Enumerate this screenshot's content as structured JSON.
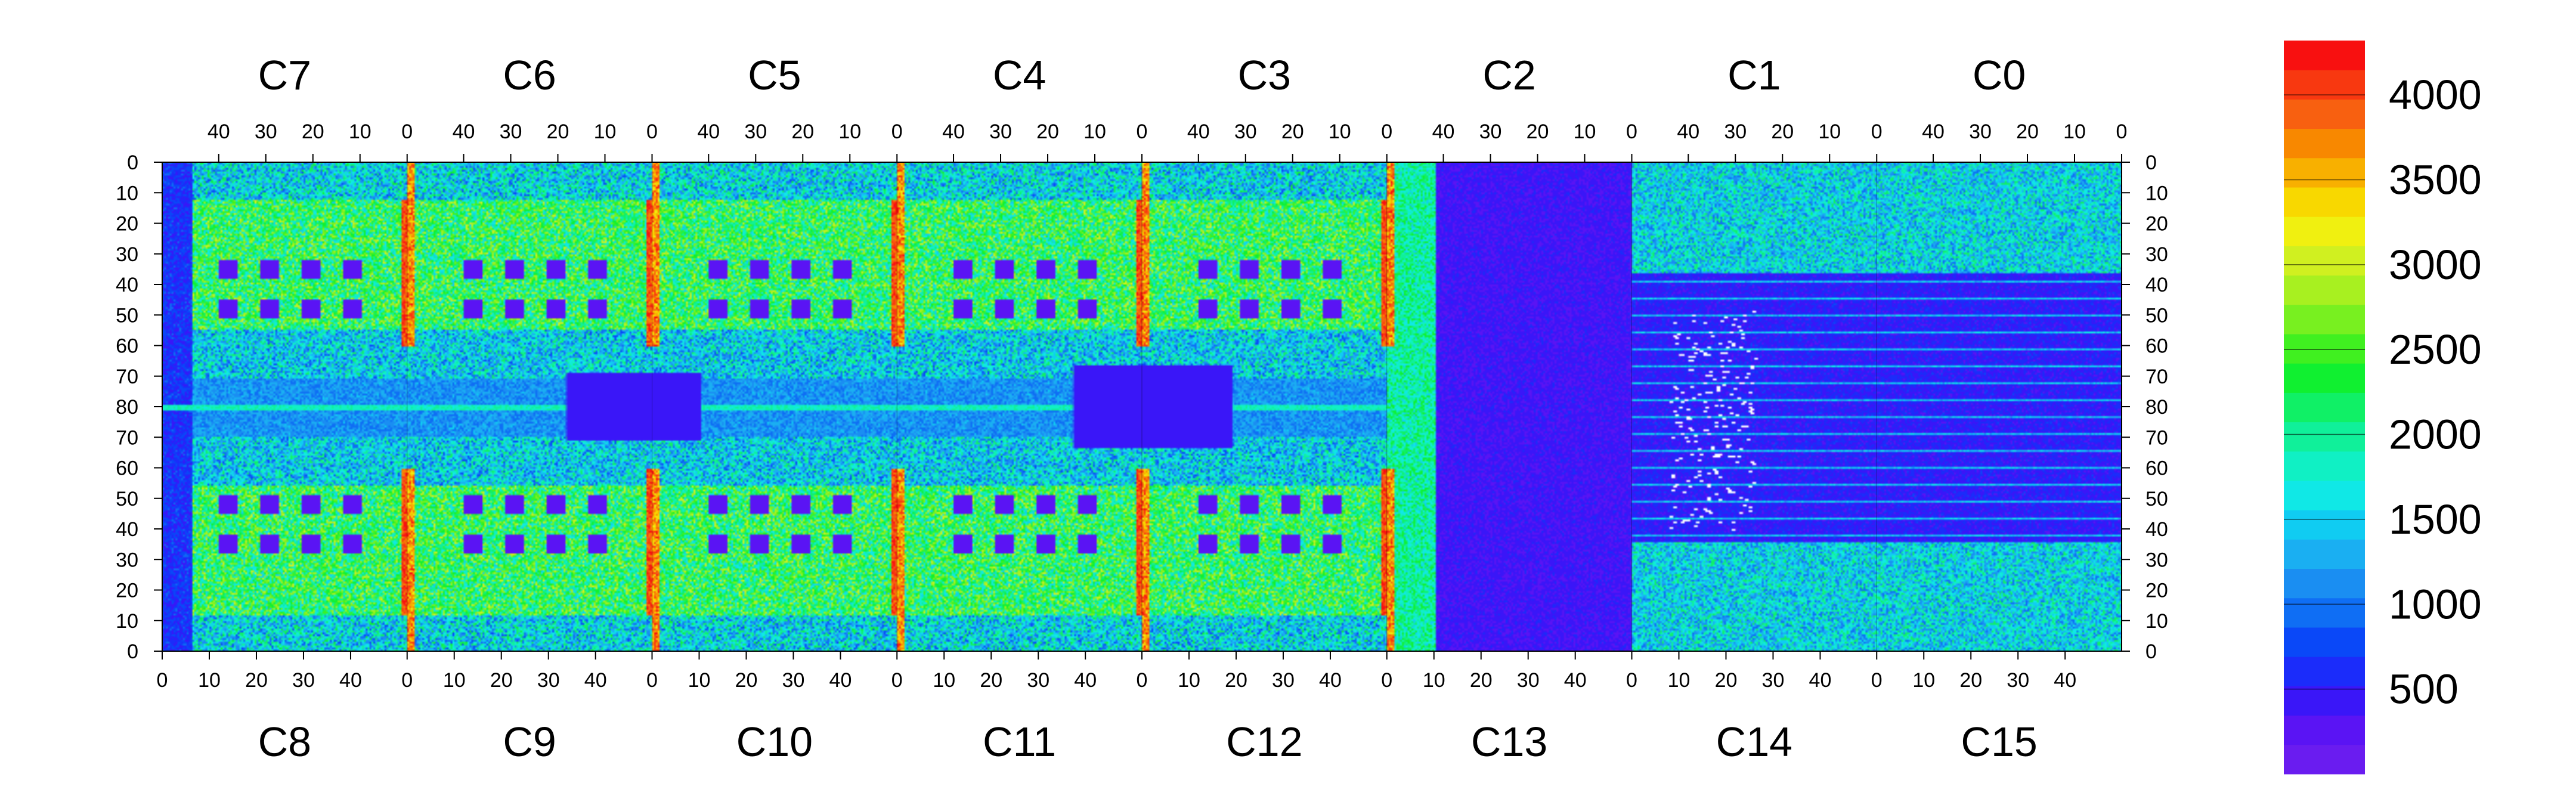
{
  "chart_data": {
    "type": "heatmap",
    "title": "",
    "xlabel": "",
    "ylabel": "",
    "top_chips": [
      "C7",
      "C6",
      "C5",
      "C4",
      "C3",
      "C2",
      "C1",
      "C0"
    ],
    "bottom_chips": [
      "C8",
      "C9",
      "C10",
      "C11",
      "C12",
      "C13",
      "C14",
      "C15"
    ],
    "top_x_ticks": [
      "40",
      "30",
      "20",
      "10",
      "0"
    ],
    "bottom_x_ticks": [
      "0",
      "10",
      "20",
      "30",
      "40"
    ],
    "y_ticks": [
      "0",
      "10",
      "20",
      "30",
      "40",
      "50",
      "60",
      "70",
      "80",
      "70",
      "60",
      "50",
      "40",
      "30",
      "20",
      "10",
      "0"
    ],
    "colorbar": {
      "range": [
        0,
        4320
      ],
      "tick_values": [
        500,
        1000,
        1500,
        2000,
        2500,
        3000,
        3500,
        4000
      ],
      "tick_labels": [
        "500",
        "1000",
        "1500",
        "2000",
        "2500",
        "3000",
        "3500",
        "4000"
      ],
      "colors": [
        "#6a1cf0",
        "#5a14f4",
        "#3a16f8",
        "#1b2cfa",
        "#0a48f8",
        "#0f6ef4",
        "#1a8ef2",
        "#1aaff2",
        "#10ccf2",
        "#10e8e6",
        "#10f0c4",
        "#10f09a",
        "#10f066",
        "#10f030",
        "#40f020",
        "#78f020",
        "#a8f020",
        "#d0f020",
        "#f0f010",
        "#f8d800",
        "#f8b000",
        "#f88800",
        "#f86010",
        "#f83810",
        "#f81010"
      ]
    },
    "columns_per_chip": 52,
    "rows": 160,
    "value_unit": ""
  }
}
